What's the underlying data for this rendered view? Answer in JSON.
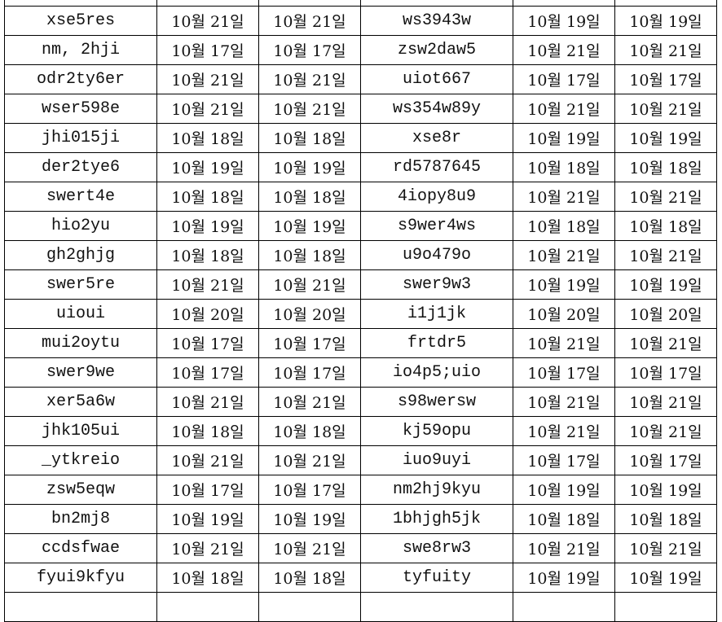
{
  "rows": [
    [
      "xse5res",
      "10월 21일",
      "10월 21일",
      "ws3943w",
      "10월 19일",
      "10월 19일"
    ],
    [
      "nm, 2hji",
      "10월 17일",
      "10월 17일",
      "zsw2daw5",
      "10월 21일",
      "10월 21일"
    ],
    [
      "odr2ty6er",
      "10월 21일",
      "10월 21일",
      "uiot667",
      "10월 17일",
      "10월 17일"
    ],
    [
      "wser598e",
      "10월 21일",
      "10월 21일",
      "ws354w89y",
      "10월 21일",
      "10월 21일"
    ],
    [
      "jhi015ji",
      "10월 18일",
      "10월 18일",
      "xse8r",
      "10월 19일",
      "10월 19일"
    ],
    [
      "der2tye6",
      "10월 19일",
      "10월 19일",
      "rd5787645",
      "10월 18일",
      "10월 18일"
    ],
    [
      "swert4e",
      "10월 18일",
      "10월 18일",
      "4iopy8u9",
      "10월 21일",
      "10월 21일"
    ],
    [
      "hio2yu",
      "10월 19일",
      "10월 19일",
      "s9wer4ws",
      "10월 18일",
      "10월 18일"
    ],
    [
      "gh2ghjg",
      "10월 18일",
      "10월 18일",
      "u9o479o",
      "10월 21일",
      "10월 21일"
    ],
    [
      "swer5re",
      "10월 21일",
      "10월 21일",
      "swer9w3",
      "10월 19일",
      "10월 19일"
    ],
    [
      "uioui",
      "10월 20일",
      "10월 20일",
      "i1j1jk",
      "10월 20일",
      "10월 20일"
    ],
    [
      "mui2oytu",
      "10월 17일",
      "10월 17일",
      "frtdr5",
      "10월 21일",
      "10월 21일"
    ],
    [
      "swer9we",
      "10월 17일",
      "10월 17일",
      "io4p5;uio",
      "10월 17일",
      "10월 17일"
    ],
    [
      "xer5a6w",
      "10월 21일",
      "10월 21일",
      "s98wersw",
      "10월 21일",
      "10월 21일"
    ],
    [
      "jhk105ui",
      "10월 18일",
      "10월 18일",
      "kj59opu",
      "10월 21일",
      "10월 21일"
    ],
    [
      "_ytkreio",
      "10월 21일",
      "10월 21일",
      "iuo9uyi",
      "10월 17일",
      "10월 17일"
    ],
    [
      "zsw5eqw",
      "10월 17일",
      "10월 17일",
      "nm2hj9kyu",
      "10월 19일",
      "10월 19일"
    ],
    [
      "bn2mj8",
      "10월 19일",
      "10월 19일",
      "1bhjgh5jk",
      "10월 18일",
      "10월 18일"
    ],
    [
      "ccdsfwae",
      "10월 21일",
      "10월 21일",
      "swe8rw3",
      "10월 21일",
      "10월 21일"
    ],
    [
      "fyui9kfyu",
      "10월 18일",
      "10월 18일",
      "tyfuity",
      "10월 19일",
      "10월 19일"
    ]
  ]
}
